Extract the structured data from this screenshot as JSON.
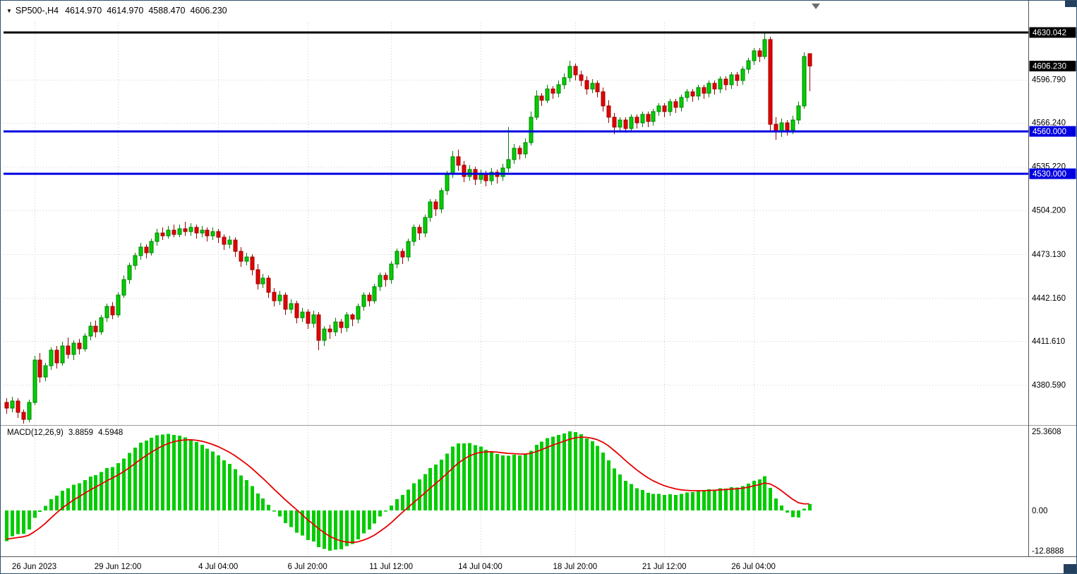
{
  "header": {
    "dropdown_icon": "▼",
    "symbol_period": "SP500-,H4",
    "open": "4614.970",
    "high": "4614.970",
    "low": "4588.470",
    "close": "4606.230"
  },
  "indicator": {
    "name": "MACD(12,26,9)",
    "main_value": "3.8859",
    "signal_value": "4.5948"
  },
  "price_axis": {
    "grid_labels": [
      "4596.790",
      "4566.240",
      "4535.220",
      "4504.200",
      "4473.130",
      "4442.160",
      "4411.610",
      "4380.590"
    ],
    "boxed_labels": [
      {
        "text": "4630.042",
        "value": 4630.042,
        "bg": "#000000"
      },
      {
        "text": "4606.230",
        "value": 4606.23,
        "bg": "#000000"
      },
      {
        "text": "4560.000",
        "value": 4560.0,
        "bg": "#0000E0"
      },
      {
        "text": "4530.000",
        "value": 4530.0,
        "bg": "#0000E0"
      }
    ]
  },
  "macd_axis": {
    "labels": [
      {
        "text": "25.3608",
        "value": 25.3608
      },
      {
        "text": "0.00",
        "value": 0
      },
      {
        "text": "-12.8888",
        "value": -12.8888
      }
    ]
  },
  "time_axis": {
    "labels": [
      {
        "text": "26 Jun 2023",
        "index": 5
      },
      {
        "text": "29 Jun 12:00",
        "index": 20
      },
      {
        "text": "4 Jul 04:00",
        "index": 38
      },
      {
        "text": "6 Jul 20:00",
        "index": 54
      },
      {
        "text": "11 Jul 12:00",
        "index": 69
      },
      {
        "text": "14 Jul 04:00",
        "index": 85
      },
      {
        "text": "18 Jul 20:00",
        "index": 102
      },
      {
        "text": "21 Jul 12:00",
        "index": 118
      },
      {
        "text": "26 Jul 04:00",
        "index": 134
      }
    ]
  },
  "chart_data": [
    {
      "type": "candlestick",
      "symbol": "SP500-",
      "period": "H4",
      "last_price": 4606.23,
      "ylim": [
        4352,
        4640
      ],
      "bull_color": "#00CE00",
      "bull_border": "#008000",
      "bear_color": "#E30000",
      "bear_border": "#990000",
      "grid_prices": [
        4596.79,
        4566.24,
        4535.22,
        4504.2,
        4473.13,
        4442.16,
        4411.61,
        4380.59
      ],
      "hlines": [
        {
          "price": 4630.042,
          "color": "#000000",
          "width": 3
        },
        {
          "price": 4560.0,
          "color": "#0000E0",
          "width": 3
        },
        {
          "price": 4530.0,
          "color": "#0000E0",
          "width": 3
        }
      ],
      "candles": [
        [
          4368,
          4371,
          4360,
          4364
        ],
        [
          4364,
          4372,
          4361,
          4369
        ],
        [
          4369,
          4371,
          4357,
          4361
        ],
        [
          4361,
          4363,
          4353,
          4356
        ],
        [
          4356,
          4370,
          4354,
          4368
        ],
        [
          4368,
          4401,
          4366,
          4398
        ],
        [
          4398,
          4403,
          4382,
          4386
        ],
        [
          4386,
          4396,
          4383,
          4394
        ],
        [
          4394,
          4407,
          4391,
          4405
        ],
        [
          4405,
          4408,
          4392,
          4396
        ],
        [
          4396,
          4411,
          4394,
          4408
        ],
        [
          4408,
          4414,
          4399,
          4402
        ],
        [
          4402,
          4412,
          4398,
          4410
        ],
        [
          4410,
          4413,
          4402,
          4406
        ],
        [
          4406,
          4417,
          4404,
          4415
        ],
        [
          4415,
          4425,
          4412,
          4422
        ],
        [
          4422,
          4426,
          4414,
          4418
        ],
        [
          4418,
          4430,
          4416,
          4428
        ],
        [
          4428,
          4438,
          4425,
          4436
        ],
        [
          4436,
          4439,
          4427,
          4430
        ],
        [
          4430,
          4446,
          4428,
          4444
        ],
        [
          4444,
          4458,
          4442,
          4455
        ],
        [
          4455,
          4467,
          4452,
          4465
        ],
        [
          4465,
          4474,
          4462,
          4472
        ],
        [
          4472,
          4481,
          4469,
          4478
        ],
        [
          4478,
          4480,
          4470,
          4474
        ],
        [
          4474,
          4484,
          4472,
          4482
        ],
        [
          4482,
          4491,
          4479,
          4488
        ],
        [
          4488,
          4492,
          4483,
          4486
        ],
        [
          4486,
          4493,
          4484,
          4490
        ],
        [
          4490,
          4494,
          4485,
          4487
        ],
        [
          4487,
          4494,
          4485,
          4491
        ],
        [
          4491,
          4496,
          4486,
          4489
        ],
        [
          4489,
          4495,
          4486,
          4492
        ],
        [
          4492,
          4494,
          4484,
          4488
        ],
        [
          4488,
          4493,
          4485,
          4490
        ],
        [
          4490,
          4492,
          4482,
          4486
        ],
        [
          4486,
          4492,
          4483,
          4489
        ],
        [
          4489,
          4491,
          4481,
          4485
        ],
        [
          4485,
          4487,
          4476,
          4480
        ],
        [
          4480,
          4486,
          4477,
          4483
        ],
        [
          4483,
          4485,
          4471,
          4475
        ],
        [
          4475,
          4478,
          4464,
          4468
        ],
        [
          4468,
          4474,
          4465,
          4471
        ],
        [
          4471,
          4473,
          4458,
          4462
        ],
        [
          4462,
          4466,
          4448,
          4452
        ],
        [
          4452,
          4459,
          4449,
          4456
        ],
        [
          4456,
          4458,
          4442,
          4446
        ],
        [
          4446,
          4449,
          4436,
          4440
        ],
        [
          4440,
          4447,
          4437,
          4444
        ],
        [
          4444,
          4446,
          4430,
          4434
        ],
        [
          4434,
          4441,
          4431,
          4438
        ],
        [
          4438,
          4440,
          4424,
          4428
        ],
        [
          4428,
          4435,
          4425,
          4432
        ],
        [
          4432,
          4434,
          4420,
          4424
        ],
        [
          4424,
          4433,
          4421,
          4430
        ],
        [
          4430,
          4432,
          4405,
          4412
        ],
        [
          4412,
          4422,
          4408,
          4420
        ],
        [
          4420,
          4423,
          4413,
          4418
        ],
        [
          4418,
          4428,
          4415,
          4425
        ],
        [
          4425,
          4427,
          4417,
          4421
        ],
        [
          4421,
          4432,
          4418,
          4430
        ],
        [
          4430,
          4431,
          4422,
          4427
        ],
        [
          4427,
          4438,
          4424,
          4436
        ],
        [
          4436,
          4446,
          4433,
          4444
        ],
        [
          4444,
          4446,
          4436,
          4440
        ],
        [
          4440,
          4452,
          4438,
          4450
        ],
        [
          4450,
          4460,
          4447,
          4458
        ],
        [
          4458,
          4460,
          4450,
          4455
        ],
        [
          4455,
          4468,
          4452,
          4466
        ],
        [
          4466,
          4477,
          4463,
          4475
        ],
        [
          4475,
          4477,
          4466,
          4471
        ],
        [
          4471,
          4484,
          4468,
          4482
        ],
        [
          4482,
          4494,
          4479,
          4492
        ],
        [
          4492,
          4494,
          4483,
          4488
        ],
        [
          4488,
          4501,
          4485,
          4499
        ],
        [
          4499,
          4512,
          4496,
          4510
        ],
        [
          4510,
          4512,
          4500,
          4505
        ],
        [
          4505,
          4520,
          4502,
          4518
        ],
        [
          4518,
          4532,
          4515,
          4530
        ],
        [
          4530,
          4546,
          4527,
          4542
        ],
        [
          4542,
          4547,
          4532,
          4536
        ],
        [
          4536,
          4539,
          4524,
          4528
        ],
        [
          4528,
          4536,
          4525,
          4533
        ],
        [
          4533,
          4535,
          4522,
          4526
        ],
        [
          4526,
          4533,
          4523,
          4530
        ],
        [
          4530,
          4532,
          4521,
          4525
        ],
        [
          4525,
          4534,
          4522,
          4531
        ],
        [
          4531,
          4533,
          4523,
          4528
        ],
        [
          4528,
          4537,
          4525,
          4534
        ],
        [
          4534,
          4563,
          4531,
          4540
        ],
        [
          4540,
          4551,
          4537,
          4548
        ],
        [
          4548,
          4550,
          4540,
          4544
        ],
        [
          4544,
          4555,
          4541,
          4552
        ],
        [
          4552,
          4574,
          4550,
          4570
        ],
        [
          4570,
          4589,
          4568,
          4585
        ],
        [
          4585,
          4587,
          4578,
          4582
        ],
        [
          4582,
          4593,
          4580,
          4590
        ],
        [
          4590,
          4592,
          4583,
          4587
        ],
        [
          4587,
          4596,
          4584,
          4593
        ],
        [
          4593,
          4601,
          4590,
          4598
        ],
        [
          4598,
          4610,
          4595,
          4606
        ],
        [
          4606,
          4608,
          4596,
          4600
        ],
        [
          4600,
          4603,
          4592,
          4596
        ],
        [
          4596,
          4599,
          4586,
          4590
        ],
        [
          4590,
          4597,
          4587,
          4594
        ],
        [
          4594,
          4596,
          4584,
          4588
        ],
        [
          4588,
          4591,
          4574,
          4578
        ],
        [
          4578,
          4582,
          4566,
          4570
        ],
        [
          4570,
          4573,
          4558,
          4563
        ],
        [
          4563,
          4570,
          4560,
          4568
        ],
        [
          4568,
          4570,
          4559,
          4562
        ],
        [
          4562,
          4572,
          4560,
          4570
        ],
        [
          4570,
          4572,
          4562,
          4566
        ],
        [
          4566,
          4574,
          4563,
          4572
        ],
        [
          4572,
          4574,
          4563,
          4567
        ],
        [
          4567,
          4576,
          4564,
          4574
        ],
        [
          4574,
          4580,
          4571,
          4578
        ],
        [
          4578,
          4580,
          4570,
          4574
        ],
        [
          4574,
          4583,
          4571,
          4581
        ],
        [
          4581,
          4583,
          4573,
          4577
        ],
        [
          4577,
          4586,
          4574,
          4584
        ],
        [
          4584,
          4590,
          4581,
          4588
        ],
        [
          4588,
          4590,
          4581,
          4585
        ],
        [
          4585,
          4593,
          4582,
          4591
        ],
        [
          4591,
          4593,
          4583,
          4587
        ],
        [
          4587,
          4596,
          4584,
          4594
        ],
        [
          4594,
          4596,
          4586,
          4590
        ],
        [
          4590,
          4599,
          4587,
          4597
        ],
        [
          4597,
          4599,
          4589,
          4593
        ],
        [
          4593,
          4602,
          4590,
          4600
        ],
        [
          4600,
          4602,
          4592,
          4596
        ],
        [
          4596,
          4606,
          4593,
          4604
        ],
        [
          4604,
          4612,
          4601,
          4610
        ],
        [
          4610,
          4619,
          4607,
          4617
        ],
        [
          4617,
          4619,
          4609,
          4613
        ],
        [
          4613,
          4630,
          4611,
          4625
        ],
        [
          4625,
          4627,
          4560,
          4565
        ],
        [
          4565,
          4570,
          4554,
          4560
        ],
        [
          4560,
          4569,
          4556,
          4566
        ],
        [
          4566,
          4568,
          4557,
          4561
        ],
        [
          4561,
          4571,
          4558,
          4568
        ],
        [
          4568,
          4581,
          4565,
          4578
        ],
        [
          4578,
          4616,
          4576,
          4613
        ],
        [
          4614.97,
          4614.97,
          4588.47,
          4606.23
        ]
      ]
    },
    {
      "type": "bar",
      "name": "MACD",
      "params": [
        12,
        26,
        9
      ],
      "last_main": 3.8859,
      "last_signal": 4.5948,
      "ylim": [
        -12.8888,
        25.3608
      ],
      "histogram_color": "#00CC00",
      "signal_color": "#E60000"
    }
  ]
}
